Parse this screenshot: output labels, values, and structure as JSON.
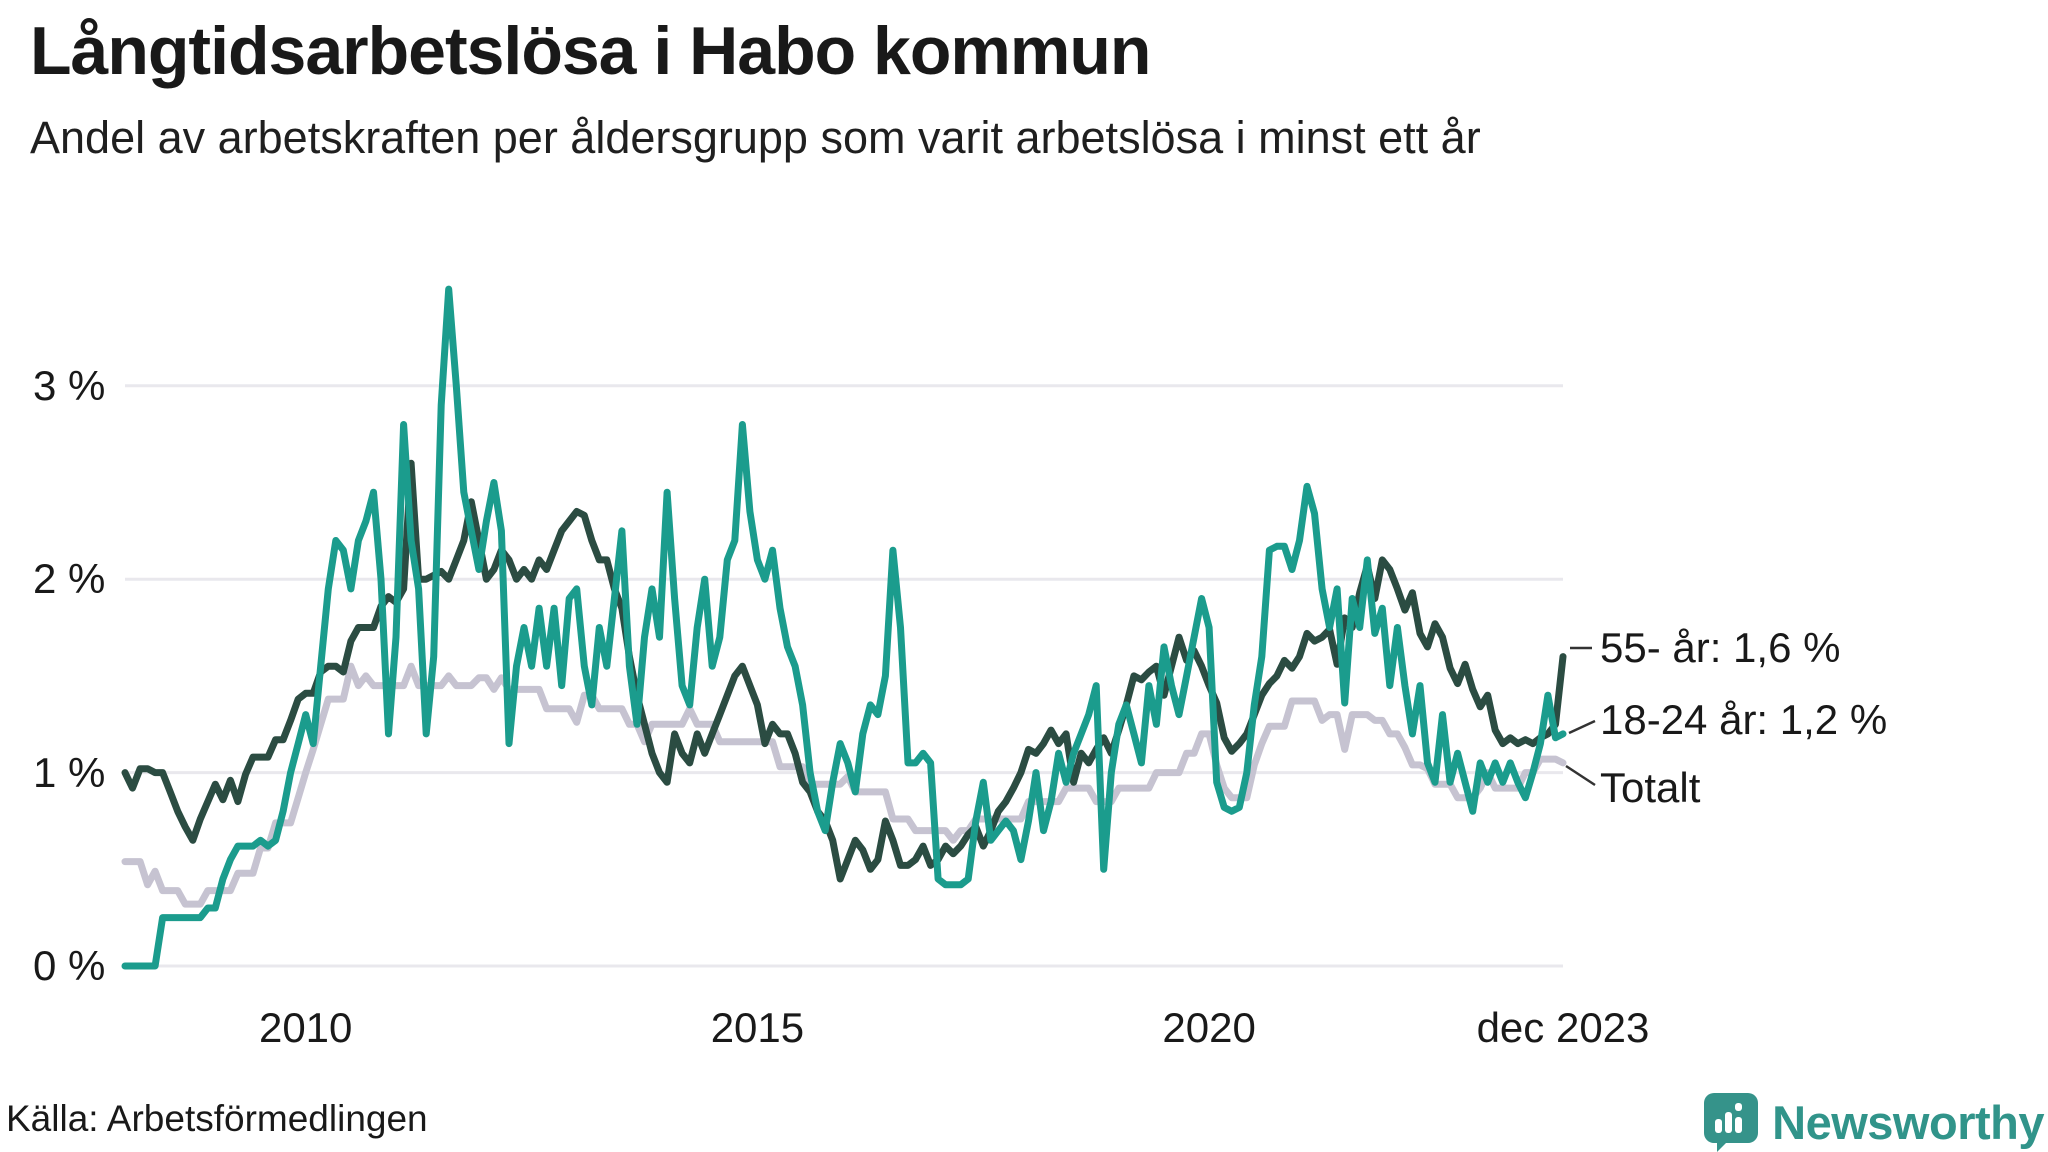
{
  "header": {
    "title": "Långtidsarbetslösa i Habo kommun",
    "subtitle": "Andel av arbetskraften per åldersgrupp som varit arbetslösa i minst ett år"
  },
  "chart_data": {
    "type": "line",
    "title": "Långtidsarbetslösa i Habo kommun",
    "x_start": "jan 2008",
    "x_end": "dec 2023",
    "frequency": "monthly",
    "ylim": [
      0,
      3.5
    ],
    "grid": "horizontal",
    "y_ticks": [
      {
        "value": 0,
        "label": "0 %"
      },
      {
        "value": 1,
        "label": "1 %"
      },
      {
        "value": 2,
        "label": "2 %"
      },
      {
        "value": 3,
        "label": "3 %"
      }
    ],
    "x_ticks": [
      {
        "label": "2010",
        "month_index": 24
      },
      {
        "label": "2015",
        "month_index": 84
      },
      {
        "label": "2020",
        "month_index": 144
      },
      {
        "label": "dec 2023",
        "month_index": 191
      }
    ],
    "end_labels": [
      {
        "text": "55- år: 1,6 %"
      },
      {
        "text": "18-24 år: 1,2 %"
      },
      {
        "text": "Totalt"
      }
    ],
    "colors": {
      "teal": "#1b9c8d",
      "dark_green": "#2b4c42",
      "gray": "#c6c3d1",
      "gridline": "#e9e8ed",
      "leader": "#333333"
    },
    "series": [
      {
        "name": "Totalt",
        "color": "#c6c3d1",
        "last_value": 1.1,
        "values": [
          0.54,
          0.54,
          0.54,
          0.42,
          0.49,
          0.39,
          0.39,
          0.39,
          0.32,
          0.32,
          0.32,
          0.39,
          0.39,
          0.39,
          0.39,
          0.48,
          0.48,
          0.48,
          0.61,
          0.61,
          0.74,
          0.74,
          0.74,
          0.87,
          1.0,
          1.12,
          1.25,
          1.38,
          1.38,
          1.38,
          1.55,
          1.45,
          1.5,
          1.45,
          1.45,
          1.45,
          1.45,
          1.45,
          1.55,
          1.45,
          1.45,
          1.45,
          1.45,
          1.5,
          1.45,
          1.45,
          1.45,
          1.49,
          1.49,
          1.43,
          1.49,
          1.43,
          1.43,
          1.43,
          1.43,
          1.43,
          1.33,
          1.33,
          1.33,
          1.33,
          1.26,
          1.4,
          1.4,
          1.33,
          1.33,
          1.33,
          1.33,
          1.25,
          1.25,
          1.16,
          1.25,
          1.25,
          1.25,
          1.25,
          1.25,
          1.33,
          1.25,
          1.25,
          1.25,
          1.16,
          1.16,
          1.16,
          1.16,
          1.16,
          1.16,
          1.16,
          1.16,
          1.03,
          1.03,
          1.03,
          1.03,
          0.94,
          0.94,
          0.94,
          0.94,
          0.94,
          0.98,
          0.9,
          0.9,
          0.9,
          0.9,
          0.9,
          0.76,
          0.76,
          0.76,
          0.7,
          0.7,
          0.7,
          0.7,
          0.7,
          0.65,
          0.7,
          0.7,
          0.76,
          0.76,
          0.76,
          0.76,
          0.76,
          0.76,
          0.76,
          0.85,
          0.85,
          0.85,
          0.85,
          0.85,
          0.92,
          0.92,
          0.92,
          0.92,
          0.85,
          0.85,
          0.85,
          0.92,
          0.92,
          0.92,
          0.92,
          0.92,
          1.0,
          1.0,
          1.0,
          1.0,
          1.1,
          1.1,
          1.2,
          1.2,
          1.04,
          0.92,
          0.87,
          0.87,
          0.87,
          1.04,
          1.15,
          1.24,
          1.24,
          1.24,
          1.37,
          1.37,
          1.37,
          1.37,
          1.27,
          1.3,
          1.3,
          1.12,
          1.3,
          1.3,
          1.3,
          1.27,
          1.27,
          1.2,
          1.2,
          1.13,
          1.04,
          1.04,
          1.02,
          0.94,
          0.94,
          0.94,
          0.87,
          0.87,
          0.87,
          0.92,
          1.0,
          0.92,
          0.92,
          0.92,
          0.92,
          1.0,
          1.0,
          1.07,
          1.07,
          1.07,
          1.05
        ]
      },
      {
        "name": "55- år",
        "color": "#2b4c42",
        "last_value": 1.6,
        "values": [
          1.0,
          0.92,
          1.02,
          1.02,
          1.0,
          1.0,
          0.9,
          0.8,
          0.72,
          0.65,
          0.76,
          0.85,
          0.94,
          0.86,
          0.96,
          0.85,
          0.99,
          1.08,
          1.08,
          1.08,
          1.17,
          1.17,
          1.27,
          1.38,
          1.41,
          1.41,
          1.52,
          1.55,
          1.55,
          1.52,
          1.68,
          1.75,
          1.75,
          1.75,
          1.86,
          1.91,
          1.88,
          1.95,
          2.6,
          2.0,
          2.0,
          2.02,
          2.04,
          2.0,
          2.1,
          2.2,
          2.4,
          2.2,
          2.0,
          2.05,
          2.15,
          2.1,
          2.0,
          2.05,
          2.0,
          2.1,
          2.05,
          2.15,
          2.25,
          2.3,
          2.35,
          2.33,
          2.2,
          2.1,
          2.1,
          1.95,
          1.85,
          1.6,
          1.4,
          1.25,
          1.1,
          1.0,
          0.95,
          1.2,
          1.1,
          1.05,
          1.2,
          1.1,
          1.2,
          1.3,
          1.4,
          1.5,
          1.55,
          1.45,
          1.35,
          1.15,
          1.25,
          1.2,
          1.2,
          1.1,
          0.95,
          0.9,
          0.8,
          0.75,
          0.65,
          0.45,
          0.55,
          0.65,
          0.6,
          0.5,
          0.55,
          0.75,
          0.65,
          0.52,
          0.52,
          0.55,
          0.62,
          0.52,
          0.55,
          0.62,
          0.58,
          0.62,
          0.68,
          0.72,
          0.62,
          0.7,
          0.8,
          0.85,
          0.92,
          1.0,
          1.12,
          1.1,
          1.15,
          1.22,
          1.15,
          1.2,
          0.95,
          1.1,
          1.05,
          1.12,
          1.18,
          1.1,
          1.22,
          1.35,
          1.5,
          1.48,
          1.52,
          1.55,
          1.4,
          1.55,
          1.7,
          1.58,
          1.63,
          1.55,
          1.45,
          1.36,
          1.18,
          1.11,
          1.15,
          1.2,
          1.3,
          1.4,
          1.46,
          1.5,
          1.58,
          1.54,
          1.6,
          1.72,
          1.68,
          1.7,
          1.74,
          1.56,
          1.8,
          1.75,
          1.93,
          2.07,
          1.9,
          2.1,
          2.05,
          1.95,
          1.84,
          1.93,
          1.72,
          1.65,
          1.77,
          1.7,
          1.54,
          1.46,
          1.56,
          1.43,
          1.34,
          1.4,
          1.22,
          1.15,
          1.18,
          1.15,
          1.17,
          1.15,
          1.18,
          1.2,
          1.25,
          1.6
        ]
      },
      {
        "name": "18-24 år",
        "color": "#1b9c8d",
        "last_value": 1.2,
        "values": [
          0,
          0,
          0,
          0,
          0,
          0.25,
          0.25,
          0.25,
          0.25,
          0.25,
          0.25,
          0.3,
          0.3,
          0.45,
          0.55,
          0.62,
          0.62,
          0.62,
          0.65,
          0.62,
          0.65,
          0.8,
          1.0,
          1.15,
          1.3,
          1.15,
          1.55,
          1.95,
          2.2,
          2.15,
          1.95,
          2.2,
          2.3,
          2.45,
          2.0,
          1.2,
          1.7,
          2.8,
          2.2,
          1.95,
          1.2,
          1.6,
          2.9,
          3.5,
          3.0,
          2.45,
          2.25,
          2.05,
          2.3,
          2.5,
          2.25,
          1.15,
          1.55,
          1.75,
          1.55,
          1.85,
          1.55,
          1.85,
          1.45,
          1.9,
          1.95,
          1.55,
          1.35,
          1.75,
          1.55,
          1.9,
          2.25,
          1.55,
          1.25,
          1.7,
          1.95,
          1.7,
          2.45,
          1.9,
          1.45,
          1.35,
          1.75,
          2.0,
          1.55,
          1.7,
          2.1,
          2.2,
          2.8,
          2.35,
          2.1,
          2.0,
          2.15,
          1.85,
          1.65,
          1.55,
          1.35,
          1.0,
          0.8,
          0.7,
          0.95,
          1.15,
          1.05,
          0.9,
          1.2,
          1.35,
          1.3,
          1.5,
          2.15,
          1.75,
          1.05,
          1.05,
          1.1,
          1.05,
          0.45,
          0.42,
          0.42,
          0.42,
          0.45,
          0.75,
          0.95,
          0.65,
          0.7,
          0.75,
          0.7,
          0.55,
          0.75,
          1.0,
          0.7,
          0.85,
          1.1,
          0.95,
          1.1,
          1.2,
          1.3,
          1.45,
          0.5,
          1.0,
          1.25,
          1.35,
          1.2,
          1.05,
          1.45,
          1.25,
          1.65,
          1.45,
          1.3,
          1.5,
          1.7,
          1.9,
          1.75,
          0.95,
          0.82,
          0.8,
          0.82,
          1.0,
          1.35,
          1.6,
          2.15,
          2.17,
          2.17,
          2.05,
          2.2,
          2.48,
          2.34,
          1.95,
          1.75,
          1.95,
          1.36,
          1.9,
          1.75,
          2.1,
          1.72,
          1.85,
          1.45,
          1.75,
          1.45,
          1.2,
          1.45,
          1.05,
          0.95,
          1.3,
          0.95,
          1.1,
          0.95,
          0.8,
          1.05,
          0.95,
          1.05,
          0.95,
          1.05,
          0.95,
          0.87,
          1.0,
          1.15,
          1.4,
          1.18,
          1.2
        ]
      }
    ]
  },
  "footer": {
    "source": "Källa: Arbetsförmedlingen",
    "brand": "Newsworthy"
  }
}
